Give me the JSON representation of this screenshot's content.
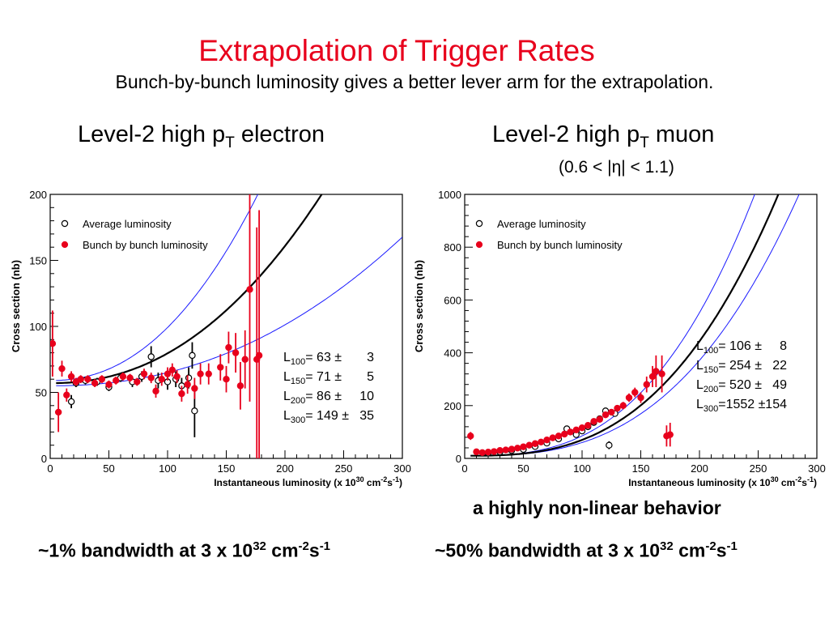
{
  "title": "Extrapolation of Trigger Rates",
  "subtitle": "Bunch-by-bunch luminosity gives a better lever arm for the extrapolation.",
  "panels": {
    "left": {
      "title_pre": "Level-2 high p",
      "title_sub": "T",
      "title_post": " electron"
    },
    "right": {
      "title_pre": "Level-2 high p",
      "title_sub": "T",
      "title_post": " muon",
      "subtitle": "(0.6 < |η| < 1.1)"
    }
  },
  "nonlinear_label": "a highly non-linear behavior",
  "bandwidth": {
    "left": {
      "pre": "~1% bandwidth at 3 x 10",
      "exp1": "32",
      "mid": " cm",
      "exp2": "-2",
      "mid2": "s",
      "exp3": "-1"
    },
    "right": {
      "pre": "~50% bandwidth at 3 x 10",
      "exp1": "32",
      "mid": " cm",
      "exp2": "-2",
      "mid2": "s",
      "exp3": "-1"
    }
  },
  "colors": {
    "title": "#e8001c",
    "bunch": "#e8001c",
    "fit": "#000000",
    "band": "#1a1aff"
  },
  "chart_data": [
    {
      "type": "scatter",
      "xlabel": "Instantaneous luminosity (x 10",
      "xlabel_exp": "30",
      "xlabel_unit": " cm",
      "xlabel_exp2": "-2",
      "xlabel_unit2": "s",
      "xlabel_exp3": "-1",
      "xlabel_close": ")",
      "ylabel": "Cross section (nb)",
      "xlim": [
        0,
        300
      ],
      "ylim": [
        0,
        200
      ],
      "xticks": [
        0,
        50,
        100,
        150,
        200,
        250,
        300
      ],
      "yticks": [
        0,
        50,
        100,
        150,
        200
      ],
      "legend": [
        "Average luminosity",
        "Bunch by bunch luminosity"
      ],
      "legend_position": "top-left",
      "fit": {
        "a": 57,
        "b": 0.0009,
        "p": 2.2
      },
      "band": {
        "upper": {
          "a": 59,
          "b": 0.0016,
          "p": 2.2
        },
        "lower": {
          "a": 55,
          "b": 0.0004,
          "p": 2.2
        }
      },
      "series": [
        {
          "name": "Average luminosity",
          "marker": "open-circle",
          "points": [
            [
              18,
              43,
              5
            ],
            [
              22,
              57,
              3
            ],
            [
              30,
              59,
              3
            ],
            [
              40,
              58,
              3
            ],
            [
              50,
              54,
              3
            ],
            [
              60,
              61,
              3
            ],
            [
              70,
              58,
              4
            ],
            [
              78,
              62,
              4
            ],
            [
              86,
              77,
              8
            ],
            [
              92,
              59,
              6
            ],
            [
              100,
              58,
              6
            ],
            [
              107,
              60,
              6
            ],
            [
              112,
              55,
              6
            ],
            [
              118,
              61,
              8
            ],
            [
              121,
              78,
              10
            ],
            [
              123,
              36,
              20
            ]
          ]
        },
        {
          "name": "Bunch by bunch luminosity",
          "marker": "filled-circle",
          "points": [
            [
              2,
              87,
              25
            ],
            [
              7,
              35,
              15
            ],
            [
              10,
              68,
              6
            ],
            [
              14,
              48,
              5
            ],
            [
              18,
              62,
              4
            ],
            [
              22,
              58,
              3
            ],
            [
              26,
              60,
              3
            ],
            [
              32,
              60,
              3
            ],
            [
              38,
              57,
              3
            ],
            [
              44,
              60,
              3
            ],
            [
              50,
              56,
              3
            ],
            [
              56,
              59,
              3
            ],
            [
              62,
              62,
              3
            ],
            [
              68,
              61,
              3
            ],
            [
              74,
              58,
              3
            ],
            [
              80,
              64,
              4
            ],
            [
              86,
              61,
              4
            ],
            [
              90,
              51,
              5
            ],
            [
              95,
              60,
              5
            ],
            [
              100,
              64,
              5
            ],
            [
              104,
              67,
              5
            ],
            [
              108,
              62,
              5
            ],
            [
              112,
              49,
              6
            ],
            [
              117,
              56,
              7
            ],
            [
              123,
              53,
              8
            ],
            [
              128,
              64,
              8
            ],
            [
              135,
              64,
              8
            ],
            [
              145,
              69,
              10
            ],
            [
              150,
              60,
              10
            ],
            [
              152,
              84,
              12
            ],
            [
              158,
              80,
              15
            ],
            [
              162,
              55,
              18
            ],
            [
              166,
              75,
              22
            ],
            [
              170,
              128,
              85
            ],
            [
              176,
              75,
              100
            ],
            [
              178,
              78,
              110
            ]
          ]
        }
      ],
      "annotations": [
        {
          "label": "L",
          "sub": "100",
          "value": "63",
          "err": "3"
        },
        {
          "label": "L",
          "sub": "150",
          "value": "71",
          "err": "5"
        },
        {
          "label": "L",
          "sub": "200",
          "value": "86",
          "err": "10"
        },
        {
          "label": "L",
          "sub": "300",
          "value": "149",
          "err": "35"
        }
      ]
    },
    {
      "type": "scatter",
      "xlabel": "Instantaneous luminosity (x 10",
      "xlabel_exp": "30",
      "xlabel_unit": " cm",
      "xlabel_exp2": "-2",
      "xlabel_unit2": "s",
      "xlabel_exp3": "-1",
      "xlabel_close": ")",
      "ylabel": "Cross section (nb)",
      "xlim": [
        0,
        300
      ],
      "ylim": [
        0,
        1000
      ],
      "xticks": [
        0,
        50,
        100,
        150,
        200,
        250,
        300
      ],
      "yticks": [
        0,
        200,
        400,
        600,
        800,
        1000
      ],
      "legend": [
        "Average luminosity",
        "Bunch by bunch luminosity"
      ],
      "legend_position": "top-left",
      "fit": {
        "a": 10,
        "b": 0.00012,
        "p": 2.85
      },
      "band": {
        "upper": {
          "a": 10,
          "b": 0.00015,
          "p": 2.85
        },
        "lower": {
          "a": 10,
          "b": 0.0001,
          "p": 2.85
        }
      },
      "series": [
        {
          "name": "Average luminosity",
          "marker": "open-circle",
          "points": [
            [
              20,
              20,
              4
            ],
            [
              30,
              24,
              4
            ],
            [
              40,
              30,
              4
            ],
            [
              50,
              34,
              4
            ],
            [
              60,
              45,
              5
            ],
            [
              70,
              58,
              5
            ],
            [
              80,
              74,
              6
            ],
            [
              87,
              112,
              12
            ],
            [
              95,
              90,
              6
            ],
            [
              100,
              104,
              7
            ],
            [
              105,
              120,
              8
            ],
            [
              110,
              136,
              9
            ],
            [
              115,
              150,
              10
            ],
            [
              120,
              180,
              12
            ],
            [
              123,
              50,
              15
            ],
            [
              128,
              170,
              12
            ]
          ]
        },
        {
          "name": "Bunch by bunch luminosity",
          "marker": "filled-circle",
          "points": [
            [
              5,
              85,
              15
            ],
            [
              10,
              25,
              8
            ],
            [
              15,
              22,
              5
            ],
            [
              20,
              24,
              4
            ],
            [
              25,
              26,
              4
            ],
            [
              30,
              30,
              4
            ],
            [
              35,
              32,
              4
            ],
            [
              40,
              35,
              4
            ],
            [
              45,
              39,
              4
            ],
            [
              50,
              44,
              4
            ],
            [
              55,
              50,
              5
            ],
            [
              60,
              56,
              5
            ],
            [
              65,
              62,
              5
            ],
            [
              70,
              70,
              5
            ],
            [
              75,
              78,
              6
            ],
            [
              80,
              85,
              6
            ],
            [
              85,
              92,
              7
            ],
            [
              90,
              100,
              7
            ],
            [
              95,
              108,
              8
            ],
            [
              100,
              116,
              8
            ],
            [
              105,
              125,
              9
            ],
            [
              110,
              140,
              10
            ],
            [
              115,
              148,
              10
            ],
            [
              120,
              165,
              12
            ],
            [
              125,
              175,
              12
            ],
            [
              130,
              190,
              12
            ],
            [
              135,
              200,
              14
            ],
            [
              140,
              230,
              16
            ],
            [
              145,
              250,
              18
            ],
            [
              150,
              230,
              20
            ],
            [
              155,
              280,
              30
            ],
            [
              160,
              310,
              40
            ],
            [
              163,
              330,
              60
            ],
            [
              168,
              320,
              70
            ],
            [
              172,
              85,
              40
            ],
            [
              175,
              90,
              45
            ]
          ]
        }
      ],
      "annotations": [
        {
          "label": "L",
          "sub": "100",
          "value": "106",
          "err": "8"
        },
        {
          "label": "L",
          "sub": "150",
          "value": "254",
          "err": "22"
        },
        {
          "label": "L",
          "sub": "200",
          "value": "520",
          "err": "49"
        },
        {
          "label": "L",
          "sub": "300",
          "value": "=1552",
          "err": "154"
        }
      ]
    }
  ]
}
